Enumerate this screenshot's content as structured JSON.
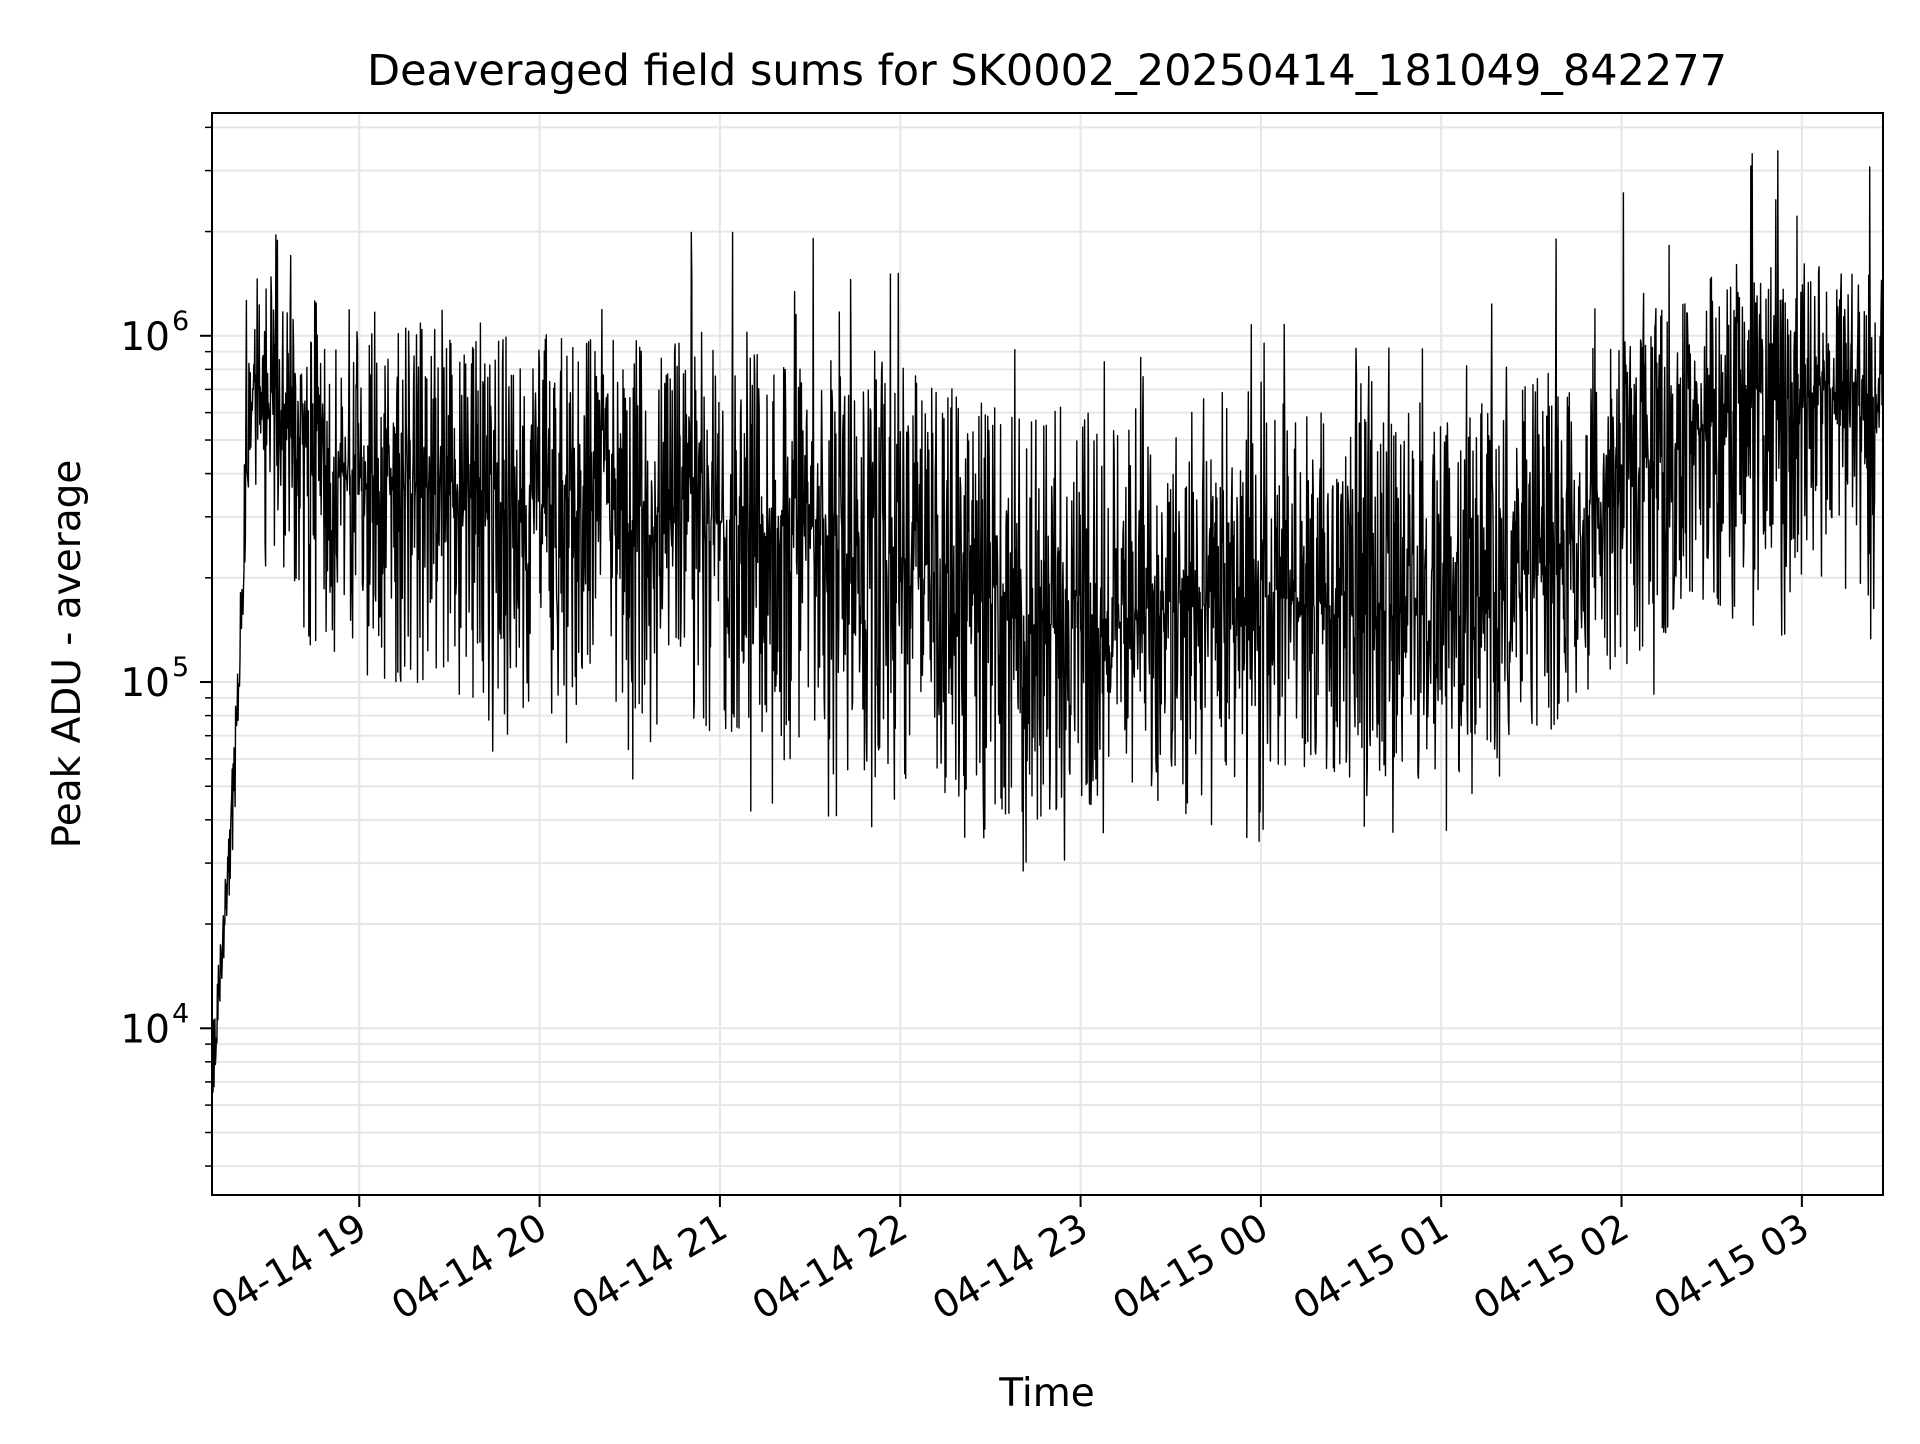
{
  "chart_data": {
    "type": "line",
    "title": "Deaveraged field sums for SK0002_20250414_181049_842277",
    "xlabel": "Time",
    "ylabel": "Peak ADU - average",
    "yscale": "log",
    "ylim": [
      3300,
      4400000
    ],
    "xlim": [
      "2025-04-14 18:11",
      "2025-04-15 03:27"
    ],
    "grid": true,
    "line_color": "#000000",
    "x_ticks": [
      "04-14 19",
      "04-14 20",
      "04-14 21",
      "04-14 22",
      "04-14 23",
      "04-15 00",
      "04-15 01",
      "04-15 02",
      "04-15 03"
    ],
    "x_tick_times": [
      "2025-04-14 19:00",
      "2025-04-14 20:00",
      "2025-04-14 21:00",
      "2025-04-14 22:00",
      "2025-04-14 23:00",
      "2025-04-15 00:00",
      "2025-04-15 01:00",
      "2025-04-15 02:00",
      "2025-04-15 03:00"
    ],
    "y_ticks": [
      {
        "base": "10",
        "exp": "4",
        "value": 10000
      },
      {
        "base": "10",
        "exp": "5",
        "value": 100000
      },
      {
        "base": "10",
        "exp": "6",
        "value": 1000000
      }
    ],
    "series": [
      {
        "x": [
          "2025-04-14 18:11",
          "2025-04-14 18:13",
          "2025-04-14 18:15",
          "2025-04-14 18:17",
          "2025-04-14 18:19",
          "2025-04-14 18:21",
          "2025-04-14 18:23",
          "2025-04-14 18:25",
          "2025-04-14 18:27",
          "2025-04-14 18:30",
          "2025-04-14 18:35",
          "2025-04-14 18:40",
          "2025-04-14 18:45",
          "2025-04-14 18:50",
          "2025-04-14 18:55",
          "2025-04-14 19:00",
          "2025-04-14 19:15",
          "2025-04-14 19:30",
          "2025-04-14 19:45",
          "2025-04-14 20:00",
          "2025-04-14 20:15",
          "2025-04-14 20:30",
          "2025-04-14 20:45",
          "2025-04-14 21:00",
          "2025-04-14 21:15",
          "2025-04-14 21:30",
          "2025-04-14 21:45",
          "2025-04-14 22:00",
          "2025-04-14 22:15",
          "2025-04-14 22:30",
          "2025-04-14 22:45",
          "2025-04-14 23:00",
          "2025-04-14 23:15",
          "2025-04-14 23:30",
          "2025-04-14 23:45",
          "2025-04-15 00:00",
          "2025-04-15 00:15",
          "2025-04-15 00:30",
          "2025-04-15 00:45",
          "2025-04-15 01:00",
          "2025-04-15 01:15",
          "2025-04-15 01:30",
          "2025-04-15 01:45",
          "2025-04-15 02:00",
          "2025-04-15 02:15",
          "2025-04-15 02:30",
          "2025-04-15 02:45",
          "2025-04-15 03:00",
          "2025-04-15 03:15",
          "2025-04-15 03:27"
        ],
        "y": [
          6000,
          11000,
          20000,
          35000,
          70000,
          150000,
          450000,
          800000,
          700000,
          600000,
          550000,
          500000,
          450000,
          420000,
          400000,
          400000,
          380000,
          350000,
          330000,
          320000,
          320000,
          310000,
          300000,
          290000,
          280000,
          270000,
          250000,
          230000,
          200000,
          170000,
          150000,
          140000,
          150000,
          160000,
          170000,
          180000,
          170000,
          160000,
          150000,
          150000,
          160000,
          200000,
          280000,
          380000,
          450000,
          550000,
          620000,
          700000,
          700000,
          650000
        ],
        "band_high": [
          12000,
          15000,
          25000,
          45000,
          100000,
          250000,
          1200000,
          1700000,
          1600000,
          1500000,
          1500000,
          1400000,
          1300000,
          1300000,
          1200000,
          1200000,
          1200000,
          1100000,
          1100000,
          1000000,
          1000000,
          1000000,
          1000000,
          950000,
          950000,
          900000,
          850000,
          850000,
          800000,
          700000,
          650000,
          600000,
          650000,
          650000,
          700000,
          700000,
          650000,
          650000,
          600000,
          600000,
          650000,
          750000,
          950000,
          1200000,
          1300000,
          1500000,
          1600000,
          1700000,
          1600000,
          1500000
        ],
        "band_low": [
          5800,
          9000,
          14000,
          25000,
          45000,
          90000,
          300000,
          600000,
          400000,
          250000,
          200000,
          150000,
          120000,
          110000,
          100000,
          100000,
          95000,
          90000,
          85000,
          80000,
          80000,
          75000,
          70000,
          65000,
          60000,
          58000,
          55000,
          50000,
          45000,
          42000,
          40000,
          42000,
          45000,
          50000,
          52000,
          55000,
          55000,
          52000,
          50000,
          50000,
          55000,
          65000,
          85000,
          110000,
          130000,
          160000,
          180000,
          200000,
          190000,
          180000
        ]
      }
    ]
  }
}
